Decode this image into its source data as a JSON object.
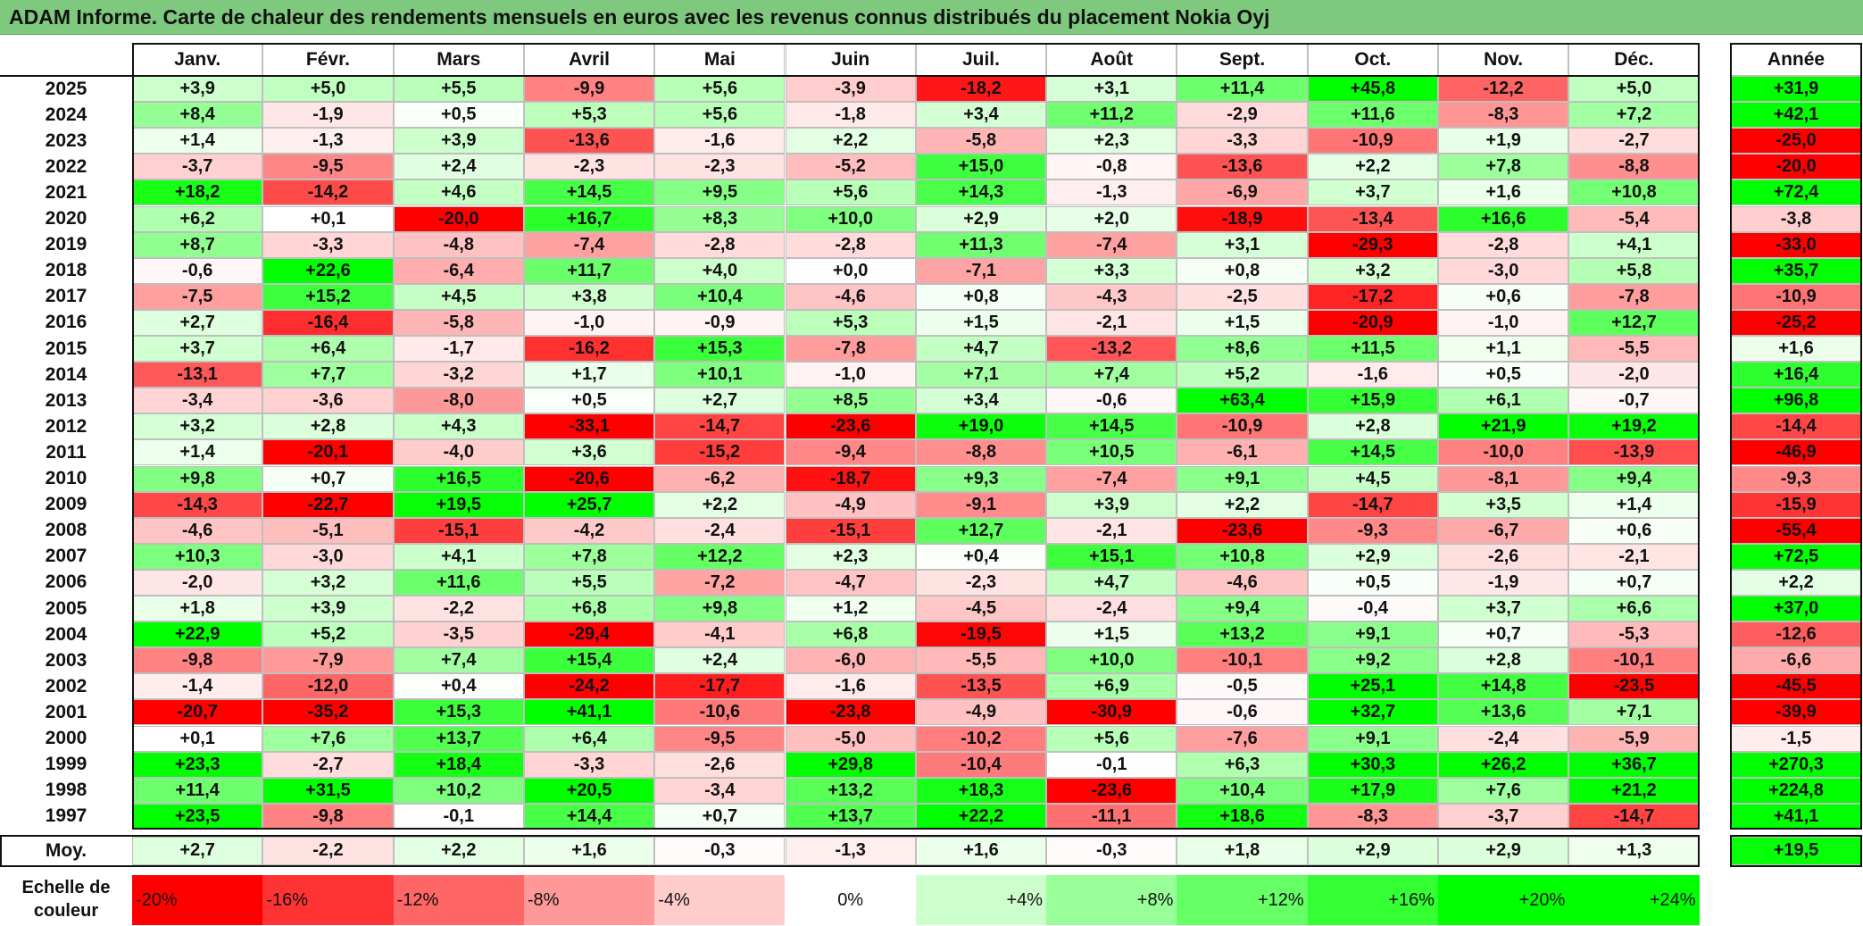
{
  "title": "ADAM Informe. Carte de chaleur des rendements mensuels en euros avec les revenus connus distribués du placement Nokia Oyj",
  "chart_data": {
    "type": "heatmap",
    "title": "ADAM Informe. Carte de chaleur des rendements mensuels en euros avec les revenus connus distribués du placement Nokia Oyj",
    "columns": [
      "Janv.",
      "Févr.",
      "Mars",
      "Avril",
      "Mai",
      "Juin",
      "Juil.",
      "Août",
      "Sept.",
      "Oct.",
      "Nov.",
      "Déc."
    ],
    "annual_header": "Année",
    "rows": [
      {
        "year": "2025",
        "values": [
          3.9,
          5.0,
          5.5,
          -9.9,
          5.6,
          -3.9,
          -18.2,
          3.1,
          11.4,
          45.8,
          -12.2,
          5.0
        ],
        "annual": 31.9
      },
      {
        "year": "2024",
        "values": [
          8.4,
          -1.9,
          0.5,
          5.3,
          5.6,
          -1.8,
          3.4,
          11.2,
          -2.9,
          11.6,
          -8.3,
          7.2
        ],
        "annual": 42.1
      },
      {
        "year": "2023",
        "values": [
          1.4,
          -1.3,
          3.9,
          -13.6,
          -1.6,
          2.2,
          -5.8,
          2.3,
          -3.3,
          -10.9,
          1.9,
          -2.7
        ],
        "annual": -25.0
      },
      {
        "year": "2022",
        "values": [
          -3.7,
          -9.5,
          2.4,
          -2.3,
          -2.3,
          -5.2,
          15.0,
          -0.8,
          -13.6,
          2.2,
          7.8,
          -8.8
        ],
        "annual": -20.0
      },
      {
        "year": "2021",
        "values": [
          18.2,
          -14.2,
          4.6,
          14.5,
          9.5,
          5.6,
          14.3,
          -1.3,
          -6.9,
          3.7,
          1.6,
          10.8
        ],
        "annual": 72.4
      },
      {
        "year": "2020",
        "values": [
          6.2,
          0.1,
          -20.0,
          16.7,
          8.3,
          10.0,
          2.9,
          2.0,
          -18.9,
          -13.4,
          16.6,
          -5.4
        ],
        "annual": -3.8
      },
      {
        "year": "2019",
        "values": [
          8.7,
          -3.3,
          -4.8,
          -7.4,
          -2.8,
          -2.8,
          11.3,
          -7.4,
          3.1,
          -29.3,
          -2.8,
          4.1
        ],
        "annual": -33.0
      },
      {
        "year": "2018",
        "values": [
          -0.6,
          22.6,
          -6.4,
          11.7,
          4.0,
          0.0,
          -7.1,
          3.3,
          0.8,
          3.2,
          -3.0,
          5.8
        ],
        "annual": 35.7
      },
      {
        "year": "2017",
        "values": [
          -7.5,
          15.2,
          4.5,
          3.8,
          10.4,
          -4.6,
          0.8,
          -4.3,
          -2.5,
          -17.2,
          0.6,
          -7.8
        ],
        "annual": -10.9
      },
      {
        "year": "2016",
        "values": [
          2.7,
          -16.4,
          -5.8,
          -1.0,
          -0.9,
          5.3,
          1.5,
          -2.1,
          1.5,
          -20.9,
          -1.0,
          12.7
        ],
        "annual": -25.2
      },
      {
        "year": "2015",
        "values": [
          3.7,
          6.4,
          -1.7,
          -16.2,
          15.3,
          -7.8,
          4.7,
          -13.2,
          8.6,
          11.5,
          1.1,
          -5.5
        ],
        "annual": 1.6
      },
      {
        "year": "2014",
        "values": [
          -13.1,
          7.7,
          -3.2,
          1.7,
          10.1,
          -1.0,
          7.1,
          7.4,
          5.2,
          -1.6,
          0.5,
          -2.0
        ],
        "annual": 16.4
      },
      {
        "year": "2013",
        "values": [
          -3.4,
          -3.6,
          -8.0,
          0.5,
          2.7,
          8.5,
          3.4,
          -0.6,
          63.4,
          15.9,
          6.1,
          -0.7
        ],
        "annual": 96.8
      },
      {
        "year": "2012",
        "values": [
          3.2,
          2.8,
          4.3,
          -33.1,
          -14.7,
          -23.6,
          19.0,
          14.5,
          -10.9,
          2.8,
          21.9,
          19.2
        ],
        "annual": -14.4
      },
      {
        "year": "2011",
        "values": [
          1.4,
          -20.1,
          -4.0,
          3.6,
          -15.2,
          -9.4,
          -8.8,
          10.5,
          -6.1,
          14.5,
          -10.0,
          -13.9
        ],
        "annual": -46.9
      },
      {
        "year": "2010",
        "values": [
          9.8,
          0.7,
          16.5,
          -20.6,
          -6.2,
          -18.7,
          9.3,
          -7.4,
          9.1,
          4.5,
          -8.1,
          9.4
        ],
        "annual": -9.3
      },
      {
        "year": "2009",
        "values": [
          -14.3,
          -22.7,
          19.5,
          25.7,
          2.2,
          -4.9,
          -9.1,
          3.9,
          2.2,
          -14.7,
          3.5,
          1.4
        ],
        "annual": -15.9
      },
      {
        "year": "2008",
        "values": [
          -4.6,
          -5.1,
          -15.1,
          -4.2,
          -2.4,
          -15.1,
          12.7,
          -2.1,
          -23.6,
          -9.3,
          -6.7,
          0.6
        ],
        "annual": -55.4
      },
      {
        "year": "2007",
        "values": [
          10.3,
          -3.0,
          4.1,
          7.8,
          12.2,
          2.3,
          0.4,
          15.1,
          10.8,
          2.9,
          -2.6,
          -2.1
        ],
        "annual": 72.5
      },
      {
        "year": "2006",
        "values": [
          -2.0,
          3.2,
          11.6,
          5.5,
          -7.2,
          -4.7,
          -2.3,
          4.7,
          -4.6,
          0.5,
          -1.9,
          0.7
        ],
        "annual": 2.2
      },
      {
        "year": "2005",
        "values": [
          1.8,
          3.9,
          -2.2,
          6.8,
          9.8,
          1.2,
          -4.5,
          -2.4,
          9.4,
          -0.4,
          3.7,
          6.6
        ],
        "annual": 37.0
      },
      {
        "year": "2004",
        "values": [
          22.9,
          5.2,
          -3.5,
          -29.4,
          -4.1,
          6.8,
          -19.5,
          1.5,
          13.2,
          9.1,
          0.7,
          -5.3
        ],
        "annual": -12.6
      },
      {
        "year": "2003",
        "values": [
          -9.8,
          -7.9,
          7.4,
          15.4,
          2.4,
          -6.0,
          -5.5,
          10.0,
          -10.1,
          9.2,
          2.8,
          -10.1
        ],
        "annual": -6.6
      },
      {
        "year": "2002",
        "values": [
          -1.4,
          -12.0,
          0.4,
          -24.2,
          -17.7,
          -1.6,
          -13.5,
          6.9,
          -0.5,
          25.1,
          14.8,
          -23.5
        ],
        "annual": -45.5
      },
      {
        "year": "2001",
        "values": [
          -20.7,
          -35.2,
          15.3,
          41.1,
          -10.6,
          -23.8,
          -4.9,
          -30.9,
          -0.6,
          32.7,
          13.6,
          7.1
        ],
        "annual": -39.9
      },
      {
        "year": "2000",
        "values": [
          0.1,
          7.6,
          13.7,
          6.4,
          -9.5,
          -5.0,
          -10.2,
          5.6,
          -7.6,
          9.1,
          -2.4,
          -5.9
        ],
        "annual": -1.5
      },
      {
        "year": "1999",
        "values": [
          23.3,
          -2.7,
          18.4,
          -3.3,
          -2.6,
          29.8,
          -10.4,
          -0.1,
          6.3,
          30.3,
          26.2,
          36.7
        ],
        "annual": 270.3
      },
      {
        "year": "1998",
        "values": [
          11.4,
          31.5,
          10.2,
          20.5,
          -3.4,
          13.2,
          18.3,
          -23.6,
          10.4,
          17.9,
          7.6,
          21.2
        ],
        "annual": 224.8
      },
      {
        "year": "1997",
        "values": [
          23.5,
          -9.8,
          -0.1,
          14.4,
          0.7,
          13.7,
          22.2,
          -11.1,
          18.6,
          -8.3,
          -3.7,
          -14.7
        ],
        "annual": 41.1
      }
    ],
    "average": {
      "label": "Moy.",
      "values": [
        2.7,
        -2.2,
        2.2,
        1.6,
        -0.3,
        -1.3,
        1.6,
        -0.3,
        1.8,
        2.9,
        2.9,
        1.3
      ],
      "annual": 19.5
    },
    "scale": {
      "label_line1": "Echelle de",
      "label_line2": "couleur",
      "stops": [
        {
          "label": "-20%",
          "value": -20,
          "color": "#ff0000"
        },
        {
          "label": "-16%",
          "value": -16,
          "color": "#ff3333"
        },
        {
          "label": "-12%",
          "value": -12,
          "color": "#ff6666"
        },
        {
          "label": "-8%",
          "value": -8,
          "color": "#ff9999"
        },
        {
          "label": "-4%",
          "value": -4,
          "color": "#ffcccc"
        },
        {
          "label": "0%",
          "value": 0,
          "color": "#ffffff"
        },
        {
          "label": "+4%",
          "value": 4,
          "color": "#ccffcc"
        },
        {
          "label": "+8%",
          "value": 8,
          "color": "#99ff99"
        },
        {
          "label": "+12%",
          "value": 12,
          "color": "#66ff66"
        },
        {
          "label": "+16%",
          "value": 16,
          "color": "#33ff33"
        },
        {
          "label": "+20%",
          "value": 20,
          "color": "#00ff00"
        },
        {
          "label": "+24%",
          "value": 24,
          "color": "#00ff00"
        }
      ]
    },
    "colors": {
      "negative": "#ff0000",
      "neutral": "#ffffff",
      "positive": "#00ff00",
      "banner": "#7fc97f"
    }
  }
}
